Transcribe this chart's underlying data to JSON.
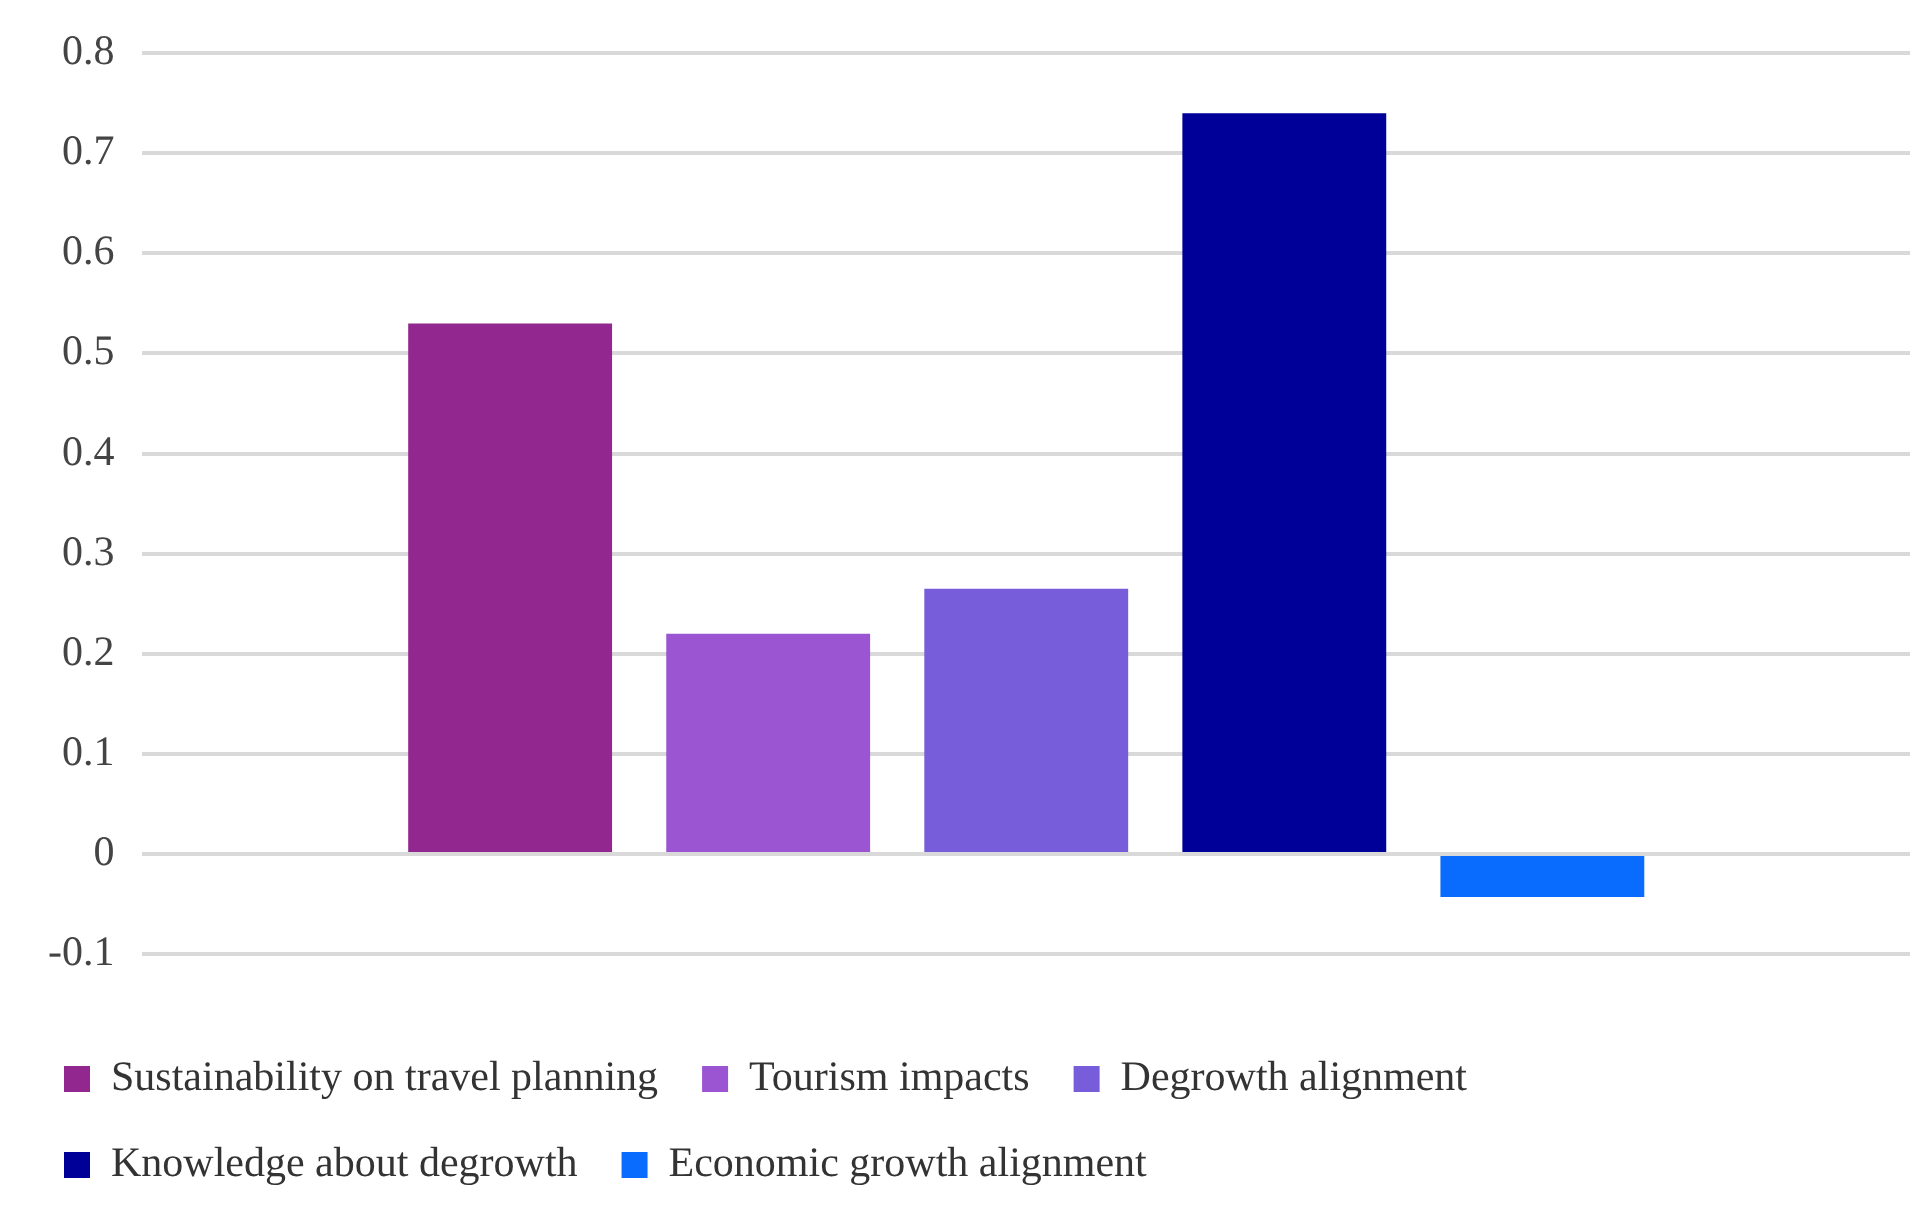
{
  "chart_data": {
    "type": "bar",
    "categories": [
      null
    ],
    "series": [
      {
        "name": "Sustainability on travel planning",
        "color": "#92278f",
        "values": [
          0.53
        ]
      },
      {
        "name": "Tourism impacts",
        "color": "#9b55d2",
        "values": [
          0.22
        ]
      },
      {
        "name": "Degrowth alignment",
        "color": "#775dd9",
        "values": [
          0.265
        ]
      },
      {
        "name": "Knowledge about degrowth",
        "color": "#000099",
        "values": [
          0.74
        ]
      },
      {
        "name": "Economic growth alignment",
        "color": "#0a6cff",
        "values": [
          -0.043
        ]
      }
    ],
    "ylim": [
      -0.1,
      0.8
    ],
    "yticks": [
      -0.1,
      0,
      0.1,
      0.2,
      0.3,
      0.4,
      0.5,
      0.6,
      0.7,
      0.8
    ],
    "grid": "y",
    "legend": "bottom"
  }
}
